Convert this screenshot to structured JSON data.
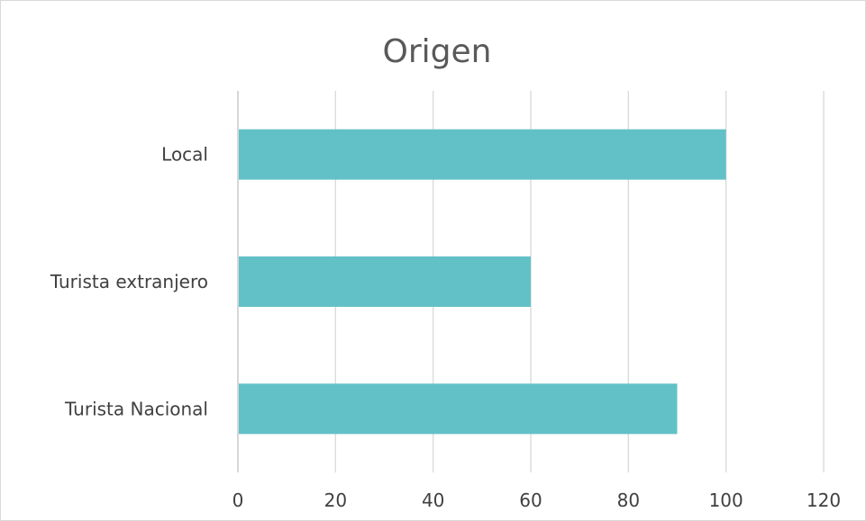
{
  "chart_data": {
    "type": "bar",
    "orientation": "horizontal",
    "title": "Origen",
    "categories": [
      "Local",
      "Turista extranjero",
      "Turista Nacional"
    ],
    "values": [
      100,
      60,
      90
    ],
    "xlim": [
      0,
      120
    ],
    "xticks": [
      "0",
      "20",
      "40",
      "60",
      "80",
      "100",
      "120"
    ],
    "grid": true,
    "legend": "none",
    "bar_color": "#62c1c7"
  }
}
